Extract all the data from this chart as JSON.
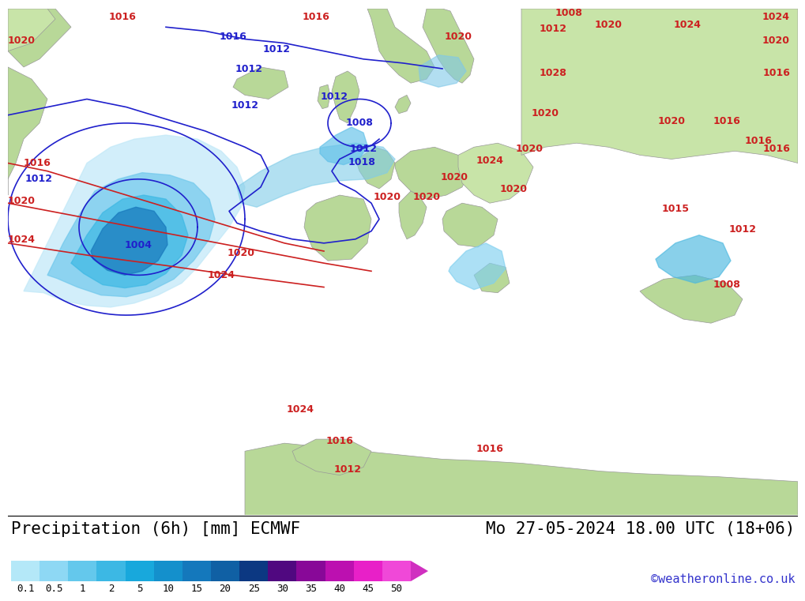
{
  "title_left": "Precipitation (6h) [mm] ECMWF",
  "title_right": "Mo 27-05-2024 18.00 UTC (18+06)",
  "credit": "©weatheronline.co.uk",
  "colorbar_values": [
    "0.1",
    "0.5",
    "1",
    "2",
    "5",
    "10",
    "15",
    "20",
    "25",
    "30",
    "35",
    "40",
    "45",
    "50"
  ],
  "colorbar_colors": [
    "#b4e8f8",
    "#8ed8f4",
    "#64c8ec",
    "#3cb8e4",
    "#18a8dc",
    "#1490cc",
    "#1478bc",
    "#1060a4",
    "#0c3882",
    "#500880",
    "#880898",
    "#bc10b0",
    "#e820c8",
    "#f048d8"
  ],
  "arrow_color": "#d030c0",
  "bg_color": "#ffffff",
  "bottom_bar_color": "#ffffff",
  "title_font_size": 15,
  "credit_font_size": 11,
  "label_font_size": 11,
  "map_ocean_color": "#e8e8ec",
  "map_land_green": "#b8d898",
  "map_land_green2": "#c8e4a8",
  "map_border_color": "#888888",
  "precip_blue_light": "#b4e8f8",
  "precip_blue_mid": "#3cb8e4",
  "precip_blue_deep": "#0c3882",
  "isobar_blue_color": "#2020cc",
  "isobar_red_color": "#cc2020",
  "isobar_font_size": 10
}
